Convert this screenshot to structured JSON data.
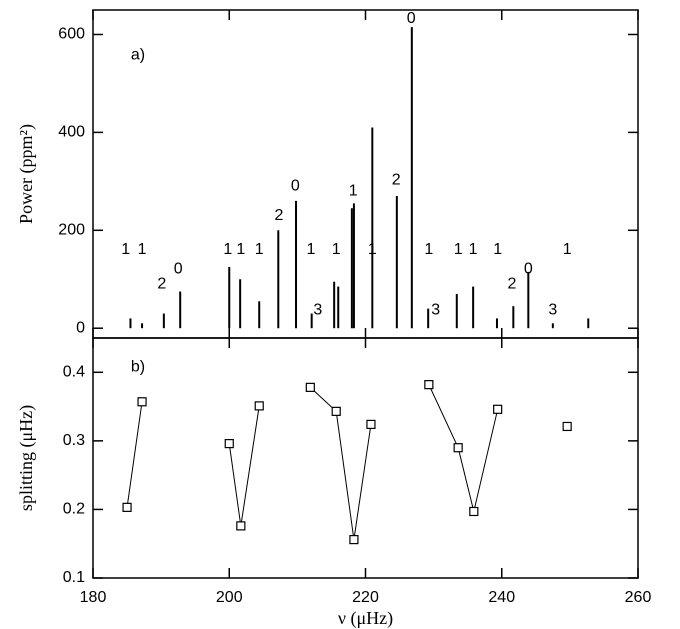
{
  "chart_data": [
    {
      "type": "spike",
      "ylabel": "Power (ppm²)",
      "color": "#000000",
      "x": [
        185.5,
        187.2,
        190.4,
        192.8,
        200.0,
        201.6,
        204.4,
        207.2,
        209.8,
        212.1,
        215.4,
        216.0,
        218.0,
        218.3,
        221.0,
        224.6,
        226.8,
        229.2,
        233.4,
        235.8,
        239.3,
        241.7,
        243.9,
        247.5,
        252.7
      ],
      "values": [
        20,
        10,
        30,
        75,
        125,
        100,
        55,
        200,
        260,
        30,
        95,
        85,
        245,
        255,
        410,
        270,
        615,
        40,
        70,
        85,
        20,
        45,
        115,
        10,
        20
      ],
      "annotations": [
        {
          "text": "a)",
          "x": 186.6,
          "y": 557
        },
        {
          "text": "1",
          "x": 184.8,
          "y": 160
        },
        {
          "text": "1",
          "x": 187.2,
          "y": 160
        },
        {
          "text": "2",
          "x": 190.1,
          "y": 90
        },
        {
          "text": "0",
          "x": 192.5,
          "y": 120
        },
        {
          "text": "1",
          "x": 199.8,
          "y": 160
        },
        {
          "text": "1",
          "x": 201.7,
          "y": 160
        },
        {
          "text": "1",
          "x": 204.4,
          "y": 160
        },
        {
          "text": "2",
          "x": 207.3,
          "y": 230
        },
        {
          "text": "0",
          "x": 209.7,
          "y": 290
        },
        {
          "text": "1",
          "x": 212.0,
          "y": 160
        },
        {
          "text": "3",
          "x": 213.0,
          "y": 37
        },
        {
          "text": "1",
          "x": 215.7,
          "y": 160
        },
        {
          "text": "1",
          "x": 218.2,
          "y": 280
        },
        {
          "text": "1",
          "x": 221.0,
          "y": 160
        },
        {
          "text": "2",
          "x": 224.5,
          "y": 302
        },
        {
          "text": "0",
          "x": 226.7,
          "y": 632
        },
        {
          "text": "1",
          "x": 229.3,
          "y": 160
        },
        {
          "text": "3",
          "x": 230.3,
          "y": 37
        },
        {
          "text": "1",
          "x": 233.6,
          "y": 160
        },
        {
          "text": "1",
          "x": 235.8,
          "y": 160
        },
        {
          "text": "1",
          "x": 239.4,
          "y": 160
        },
        {
          "text": "2",
          "x": 241.5,
          "y": 90
        },
        {
          "text": "0",
          "x": 243.9,
          "y": 120
        },
        {
          "text": "3",
          "x": 247.5,
          "y": 37
        },
        {
          "text": "1",
          "x": 249.6,
          "y": 160
        }
      ],
      "xlim": [
        180,
        260
      ],
      "ylim": [
        -20,
        650
      ],
      "xticks": [
        180,
        200,
        220,
        240,
        260
      ],
      "yticks": [
        0,
        200,
        400,
        600
      ]
    },
    {
      "type": "line",
      "ylabel": "splitting (μHz)",
      "xlabel": "ν (μHz)",
      "marker": "square",
      "annotations": [
        {
          "text": "b)",
          "x": 186.6,
          "y": 0.407
        }
      ],
      "series": [
        {
          "color": "#000000",
          "x": [
            185.0,
            187.2
          ],
          "values": [
            0.203,
            0.357
          ]
        },
        {
          "color": "#000000",
          "x": [
            200.0,
            201.7,
            204.4
          ],
          "values": [
            0.296,
            0.176,
            0.351
          ]
        },
        {
          "color": "#000000",
          "x": [
            211.9,
            215.7,
            218.3,
            220.8
          ],
          "values": [
            0.378,
            0.343,
            0.156,
            0.324
          ]
        },
        {
          "color": "#000000",
          "x": [
            229.3,
            233.6,
            235.9,
            239.4
          ],
          "values": [
            0.382,
            0.29,
            0.197,
            0.346
          ]
        },
        {
          "color": "#000000",
          "x": [
            249.6
          ],
          "values": [
            0.321
          ]
        }
      ],
      "xlim": [
        180,
        260
      ],
      "ylim": [
        0.1,
        0.45
      ],
      "xticks": [
        180,
        200,
        220,
        240,
        260
      ],
      "yticks": [
        0.1,
        0.2,
        0.3,
        0.4
      ]
    }
  ]
}
